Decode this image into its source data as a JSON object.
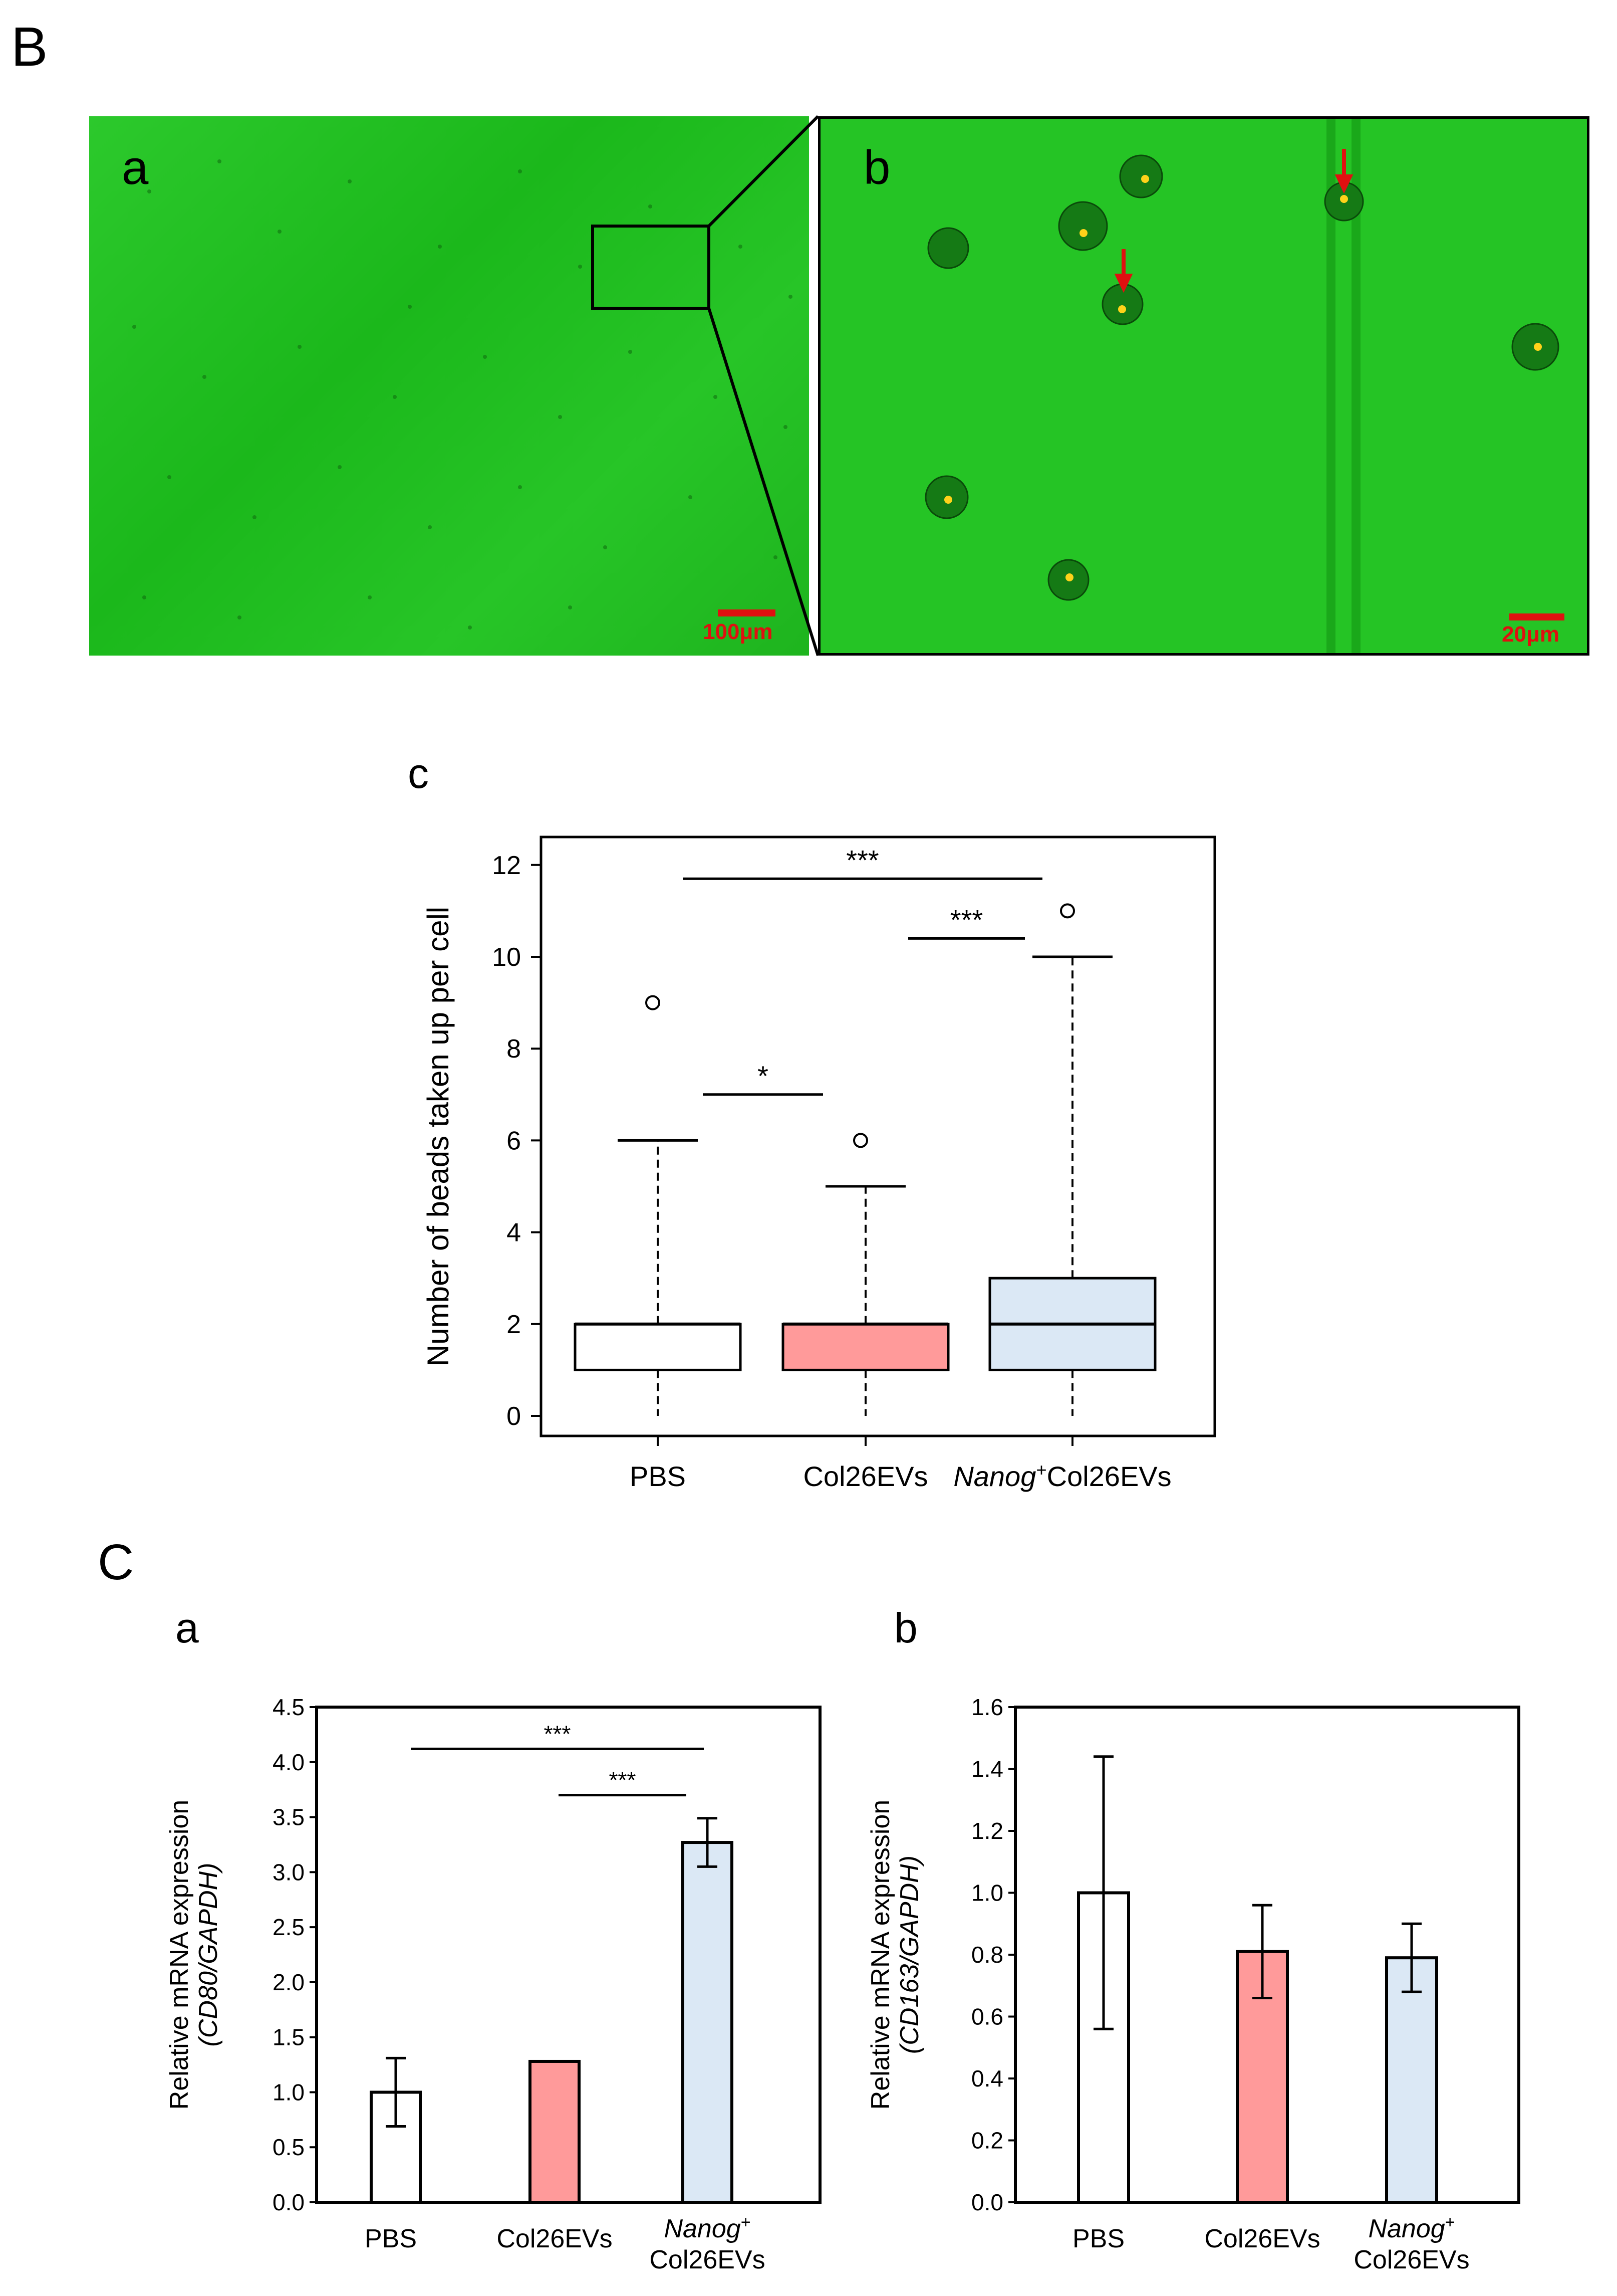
{
  "panel_B": {
    "label": "B",
    "image_a": {
      "label": "a",
      "scale_bar": "100μm"
    },
    "image_b": {
      "label": "b",
      "scale_bar": "20μm"
    }
  },
  "panel_c": {
    "label": "c",
    "ylabel": "Number of beads taken up per cell",
    "y_ticks": [
      "0",
      "2",
      "4",
      "6",
      "8",
      "10",
      "12"
    ],
    "x_ticks": {
      "pbs": "PBS",
      "col": "Col26EVs",
      "nanog_italic": "Nanog",
      "nanog_sup": "+",
      "nanog_rest": "Col26EVs"
    },
    "sig": {
      "s1": "***",
      "s2": "***",
      "s3": "*"
    }
  },
  "panel_C": {
    "label": "C",
    "a": {
      "label": "a",
      "ylabel_line1": "Relative mRNA expression",
      "ylabel_line2": "(CD80/GAPDH)",
      "y_ticks": [
        "0.0",
        "0.5",
        "1.0",
        "1.5",
        "2.0",
        "2.5",
        "3.0",
        "3.5",
        "4.0",
        "4.5"
      ],
      "x_ticks": {
        "pbs": "PBS",
        "col": "Col26EVs",
        "nanog_italic": "Nanog",
        "nanog_sup": "+",
        "nanog_rest": "Col26EVs"
      },
      "sig": {
        "s1": "***",
        "s2": "***"
      }
    },
    "b": {
      "label": "b",
      "ylabel_line1": "Relative mRNA expression",
      "ylabel_line2": "(CD163/GAPDH)",
      "y_ticks": [
        "0.0",
        "0.2",
        "0.4",
        "0.6",
        "0.8",
        "1.0",
        "1.2",
        "1.4",
        "1.6"
      ],
      "x_ticks": {
        "pbs": "PBS",
        "col": "Col26EVs",
        "nanog_italic": "Nanog",
        "nanog_sup": "+",
        "nanog_rest": "Col26EVs"
      }
    }
  },
  "colors": {
    "pbs": "#ffffff",
    "col26evs": "#ff9a9a",
    "nanog_col26evs": "#dbe8f5",
    "micro_green": "#1fc21f",
    "scale_red": "#e01010"
  },
  "chart_data": [
    {
      "type": "box",
      "categories": [
        "PBS",
        "Col26EVs",
        "Nanog+Col26EVs"
      ],
      "boxes": [
        {
          "min": 0,
          "q1": 1,
          "median": 2,
          "q3": 2,
          "whisker_high": 6,
          "outliers": [
            9
          ]
        },
        {
          "min": 0,
          "q1": 1,
          "median": 2,
          "q3": 2,
          "whisker_high": 5,
          "outliers": [
            6
          ]
        },
        {
          "min": 0,
          "q1": 1,
          "median": 2,
          "q3": 3,
          "whisker_high": 10,
          "outliers": [
            11
          ]
        }
      ],
      "ylim": [
        0,
        12.5
      ],
      "significance": [
        {
          "from": "PBS",
          "to": "Nanog+Col26EVs",
          "y": 11.7,
          "label": "***"
        },
        {
          "from": "Col26EVs",
          "to": "Nanog+Col26EVs",
          "y": 10.4,
          "label": "***"
        },
        {
          "from": "PBS",
          "to": "Col26EVs",
          "y": 7.0,
          "label": "*"
        }
      ]
    },
    {
      "type": "bar",
      "categories": [
        "PBS",
        "Col26EVs",
        "Nanog+Col26EVs"
      ],
      "values": [
        1.0,
        1.28,
        3.27
      ],
      "errors": [
        0.31,
        0.0,
        0.22
      ],
      "ylim": [
        0,
        4.5
      ],
      "significance": [
        {
          "from": "PBS",
          "to": "Nanog+Col26EVs",
          "y": 4.12,
          "label": "***"
        },
        {
          "from": "Col26EVs",
          "to": "Nanog+Col26EVs",
          "y": 3.7,
          "label": "***"
        }
      ]
    },
    {
      "type": "bar",
      "categories": [
        "PBS",
        "Col26EVs",
        "Nanog+Col26EVs"
      ],
      "values": [
        1.0,
        0.81,
        0.79
      ],
      "errors": [
        0.44,
        0.15,
        0.11
      ],
      "ylim": [
        0,
        1.6
      ]
    }
  ]
}
